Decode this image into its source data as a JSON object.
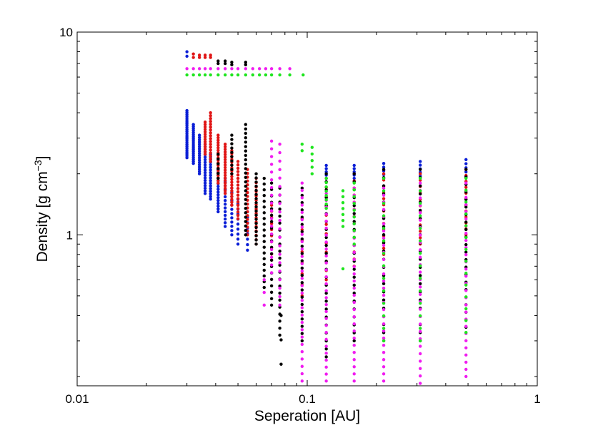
{
  "chart_data": {
    "type": "scatter",
    "title": "",
    "xlabel": "Seperation [AU]",
    "ylabel_main": "Density [g cm",
    "ylabel_exp": "−3",
    "ylabel_close": "]",
    "xscale": "log",
    "yscale": "log",
    "xlim": [
      0.01,
      1
    ],
    "ylim": [
      0.18,
      10
    ],
    "x_tick_labels": [
      {
        "value": 0.01,
        "label": "0.01"
      },
      {
        "value": 0.1,
        "label": "0.1"
      },
      {
        "value": 1,
        "label": "1"
      }
    ],
    "y_tick_labels": [
      {
        "value": 1,
        "label": "1"
      },
      {
        "value": 10,
        "label": "10"
      }
    ],
    "grid": false,
    "legend": "none",
    "colors": {
      "blue": "#0a1ed6",
      "red": "#e01515",
      "black": "#000000",
      "magenta": "#f01df0",
      "green": "#1ee51e"
    },
    "series": [
      {
        "color": "blue",
        "columns": [
          {
            "x": 0.03,
            "ymin": 2.4,
            "ymax": 4.1,
            "n": 26
          },
          {
            "x": 0.032,
            "ymin": 2.25,
            "ymax": 3.5,
            "n": 20
          },
          {
            "x": 0.034,
            "ymin": 2.0,
            "ymax": 3.1,
            "n": 18
          },
          {
            "x": 0.036,
            "ymin": 1.6,
            "ymax": 2.8,
            "n": 20
          },
          {
            "x": 0.038,
            "ymin": 1.5,
            "ymax": 2.5,
            "n": 18
          },
          {
            "x": 0.041,
            "ymin": 1.3,
            "ymax": 2.1,
            "n": 16
          },
          {
            "x": 0.044,
            "ymin": 1.1,
            "ymax": 1.9,
            "n": 14
          },
          {
            "x": 0.047,
            "ymin": 1.0,
            "ymax": 1.7,
            "n": 12
          },
          {
            "x": 0.05,
            "ymin": 0.9,
            "ymax": 1.5,
            "n": 10
          },
          {
            "x": 0.055,
            "ymin": 0.84,
            "ymax": 1.3,
            "n": 8
          },
          {
            "x": 0.121,
            "ymin": 1.9,
            "ymax": 2.2,
            "n": 5
          },
          {
            "x": 0.16,
            "ymin": 1.9,
            "ymax": 2.2,
            "n": 5
          },
          {
            "x": 0.215,
            "ymin": 1.9,
            "ymax": 2.25,
            "n": 5
          },
          {
            "x": 0.31,
            "ymin": 1.95,
            "ymax": 2.3,
            "n": 5
          },
          {
            "x": 0.49,
            "ymin": 1.95,
            "ymax": 2.35,
            "n": 5
          },
          {
            "x": 0.03,
            "ymin": 7.6,
            "ymax": 8.0,
            "n": 2
          }
        ]
      },
      {
        "color": "red",
        "columns": [
          {
            "x": 0.032,
            "ymin": 7.5,
            "ymax": 7.8,
            "n": 2
          },
          {
            "x": 0.034,
            "ymin": 7.5,
            "ymax": 7.7,
            "n": 2
          },
          {
            "x": 0.036,
            "ymin": 7.5,
            "ymax": 7.7,
            "n": 2
          },
          {
            "x": 0.038,
            "ymin": 7.5,
            "ymax": 7.7,
            "n": 2
          },
          {
            "x": 0.036,
            "ymin": 2.5,
            "ymax": 3.6,
            "n": 14
          },
          {
            "x": 0.038,
            "ymin": 2.3,
            "ymax": 4.0,
            "n": 18
          },
          {
            "x": 0.041,
            "ymin": 1.8,
            "ymax": 3.1,
            "n": 20
          },
          {
            "x": 0.044,
            "ymin": 1.6,
            "ymax": 2.8,
            "n": 20
          },
          {
            "x": 0.047,
            "ymin": 1.4,
            "ymax": 2.6,
            "n": 20
          },
          {
            "x": 0.05,
            "ymin": 1.2,
            "ymax": 2.3,
            "n": 18
          },
          {
            "x": 0.055,
            "ymin": 1.0,
            "ymax": 2.1,
            "n": 18
          },
          {
            "x": 0.06,
            "ymin": 0.9,
            "ymax": 1.9,
            "n": 16
          },
          {
            "x": 0.07,
            "ymin": 0.75,
            "ymax": 1.4,
            "n": 10
          },
          {
            "x": 0.095,
            "ymin": 0.5,
            "ymax": 1.2,
            "n": 8
          },
          {
            "x": 0.121,
            "ymin": 0.6,
            "ymax": 1.9,
            "n": 12
          },
          {
            "x": 0.16,
            "ymin": 0.7,
            "ymax": 2.0,
            "n": 14
          },
          {
            "x": 0.215,
            "ymin": 0.8,
            "ymax": 2.0,
            "n": 14
          },
          {
            "x": 0.31,
            "ymin": 0.9,
            "ymax": 2.0,
            "n": 12
          },
          {
            "x": 0.49,
            "ymin": 1.0,
            "ymax": 2.1,
            "n": 12
          }
        ]
      },
      {
        "color": "black",
        "columns": [
          {
            "x": 0.041,
            "ymin": 7.0,
            "ymax": 7.2,
            "n": 2
          },
          {
            "x": 0.044,
            "ymin": 7.0,
            "ymax": 7.2,
            "n": 2
          },
          {
            "x": 0.047,
            "ymin": 6.9,
            "ymax": 7.1,
            "n": 2
          },
          {
            "x": 0.054,
            "ymin": 6.9,
            "ymax": 7.1,
            "n": 2
          },
          {
            "x": 0.041,
            "ymin": 1.9,
            "ymax": 2.5,
            "n": 6
          },
          {
            "x": 0.047,
            "ymin": 2.0,
            "ymax": 3.1,
            "n": 10
          },
          {
            "x": 0.054,
            "ymin": 1.0,
            "ymax": 3.5,
            "n": 26
          },
          {
            "x": 0.06,
            "ymin": 0.9,
            "ymax": 2.0,
            "n": 18
          },
          {
            "x": 0.065,
            "ymin": 0.55,
            "ymax": 1.9,
            "n": 20
          },
          {
            "x": 0.07,
            "ymin": 0.45,
            "ymax": 1.8,
            "n": 20
          },
          {
            "x": 0.076,
            "ymin": 0.32,
            "ymax": 1.7,
            "n": 22
          },
          {
            "x": 0.077,
            "ymin": 0.23,
            "ymax": 0.4,
            "n": 3
          },
          {
            "x": 0.095,
            "ymin": 0.3,
            "ymax": 1.7,
            "n": 22
          },
          {
            "x": 0.121,
            "ymin": 0.25,
            "ymax": 2.0,
            "n": 24
          },
          {
            "x": 0.16,
            "ymin": 0.3,
            "ymax": 2.0,
            "n": 22
          },
          {
            "x": 0.215,
            "ymin": 0.3,
            "ymax": 2.1,
            "n": 22
          },
          {
            "x": 0.31,
            "ymin": 0.3,
            "ymax": 2.1,
            "n": 22
          },
          {
            "x": 0.49,
            "ymin": 0.35,
            "ymax": 2.1,
            "n": 22
          }
        ]
      },
      {
        "color": "magenta",
        "columns": [
          {
            "x": 0.03,
            "ymin": 6.6,
            "ymax": 6.6,
            "n": 1
          },
          {
            "x": 0.032,
            "ymin": 6.6,
            "ymax": 6.6,
            "n": 1
          },
          {
            "x": 0.034,
            "ymin": 6.6,
            "ymax": 6.6,
            "n": 1
          },
          {
            "x": 0.036,
            "ymin": 6.6,
            "ymax": 6.6,
            "n": 1
          },
          {
            "x": 0.038,
            "ymin": 6.6,
            "ymax": 6.6,
            "n": 1
          },
          {
            "x": 0.041,
            "ymin": 6.6,
            "ymax": 6.6,
            "n": 1
          },
          {
            "x": 0.044,
            "ymin": 6.6,
            "ymax": 6.6,
            "n": 1
          },
          {
            "x": 0.047,
            "ymin": 6.6,
            "ymax": 6.6,
            "n": 1
          },
          {
            "x": 0.05,
            "ymin": 6.6,
            "ymax": 6.6,
            "n": 1
          },
          {
            "x": 0.054,
            "ymin": 6.6,
            "ymax": 6.6,
            "n": 1
          },
          {
            "x": 0.058,
            "ymin": 6.6,
            "ymax": 6.6,
            "n": 1
          },
          {
            "x": 0.062,
            "ymin": 6.6,
            "ymax": 6.6,
            "n": 1
          },
          {
            "x": 0.066,
            "ymin": 6.6,
            "ymax": 6.6,
            "n": 1
          },
          {
            "x": 0.07,
            "ymin": 6.6,
            "ymax": 6.6,
            "n": 1
          },
          {
            "x": 0.076,
            "ymin": 6.6,
            "ymax": 6.6,
            "n": 1
          },
          {
            "x": 0.084,
            "ymin": 6.6,
            "ymax": 6.6,
            "n": 1
          },
          {
            "x": 0.065,
            "ymin": 0.45,
            "ymax": 0.6,
            "n": 3
          },
          {
            "x": 0.07,
            "ymin": 0.65,
            "ymax": 2.9,
            "n": 18
          },
          {
            "x": 0.076,
            "ymin": 0.45,
            "ymax": 2.8,
            "n": 20
          },
          {
            "x": 0.095,
            "ymin": 0.19,
            "ymax": 1.8,
            "n": 28
          },
          {
            "x": 0.121,
            "ymin": 0.19,
            "ymax": 1.6,
            "n": 28
          },
          {
            "x": 0.16,
            "ymin": 0.19,
            "ymax": 1.7,
            "n": 28
          },
          {
            "x": 0.215,
            "ymin": 0.19,
            "ymax": 1.7,
            "n": 28
          },
          {
            "x": 0.31,
            "ymin": 0.185,
            "ymax": 1.8,
            "n": 28
          },
          {
            "x": 0.49,
            "ymin": 0.2,
            "ymax": 1.8,
            "n": 28
          }
        ]
      },
      {
        "color": "green",
        "columns": [
          {
            "x": 0.03,
            "ymin": 6.15,
            "ymax": 6.15,
            "n": 1
          },
          {
            "x": 0.032,
            "ymin": 6.15,
            "ymax": 6.15,
            "n": 1
          },
          {
            "x": 0.034,
            "ymin": 6.15,
            "ymax": 6.15,
            "n": 1
          },
          {
            "x": 0.036,
            "ymin": 6.15,
            "ymax": 6.15,
            "n": 1
          },
          {
            "x": 0.038,
            "ymin": 6.15,
            "ymax": 6.15,
            "n": 1
          },
          {
            "x": 0.041,
            "ymin": 6.15,
            "ymax": 6.15,
            "n": 1
          },
          {
            "x": 0.044,
            "ymin": 6.15,
            "ymax": 6.15,
            "n": 1
          },
          {
            "x": 0.047,
            "ymin": 6.15,
            "ymax": 6.15,
            "n": 1
          },
          {
            "x": 0.05,
            "ymin": 6.15,
            "ymax": 6.15,
            "n": 1
          },
          {
            "x": 0.054,
            "ymin": 6.15,
            "ymax": 6.15,
            "n": 1
          },
          {
            "x": 0.058,
            "ymin": 6.15,
            "ymax": 6.15,
            "n": 1
          },
          {
            "x": 0.062,
            "ymin": 6.15,
            "ymax": 6.15,
            "n": 1
          },
          {
            "x": 0.066,
            "ymin": 6.15,
            "ymax": 6.15,
            "n": 1
          },
          {
            "x": 0.07,
            "ymin": 6.15,
            "ymax": 6.15,
            "n": 1
          },
          {
            "x": 0.076,
            "ymin": 6.15,
            "ymax": 6.15,
            "n": 1
          },
          {
            "x": 0.084,
            "ymin": 6.15,
            "ymax": 6.15,
            "n": 1
          },
          {
            "x": 0.096,
            "ymin": 6.15,
            "ymax": 6.15,
            "n": 1
          },
          {
            "x": 0.095,
            "ymin": 2.6,
            "ymax": 2.8,
            "n": 2
          },
          {
            "x": 0.105,
            "ymin": 2.0,
            "ymax": 2.7,
            "n": 5
          },
          {
            "x": 0.121,
            "ymin": 1.35,
            "ymax": 1.9,
            "n": 8
          },
          {
            "x": 0.143,
            "ymin": 1.1,
            "ymax": 1.65,
            "n": 7
          },
          {
            "x": 0.143,
            "ymin": 0.68,
            "ymax": 0.68,
            "n": 1
          },
          {
            "x": 0.16,
            "ymin": 0.9,
            "ymax": 1.8,
            "n": 10
          },
          {
            "x": 0.215,
            "ymin": 0.3,
            "ymax": 1.9,
            "n": 14
          },
          {
            "x": 0.31,
            "ymin": 0.3,
            "ymax": 1.9,
            "n": 14
          },
          {
            "x": 0.49,
            "ymin": 0.33,
            "ymax": 1.9,
            "n": 14
          }
        ]
      }
    ]
  }
}
